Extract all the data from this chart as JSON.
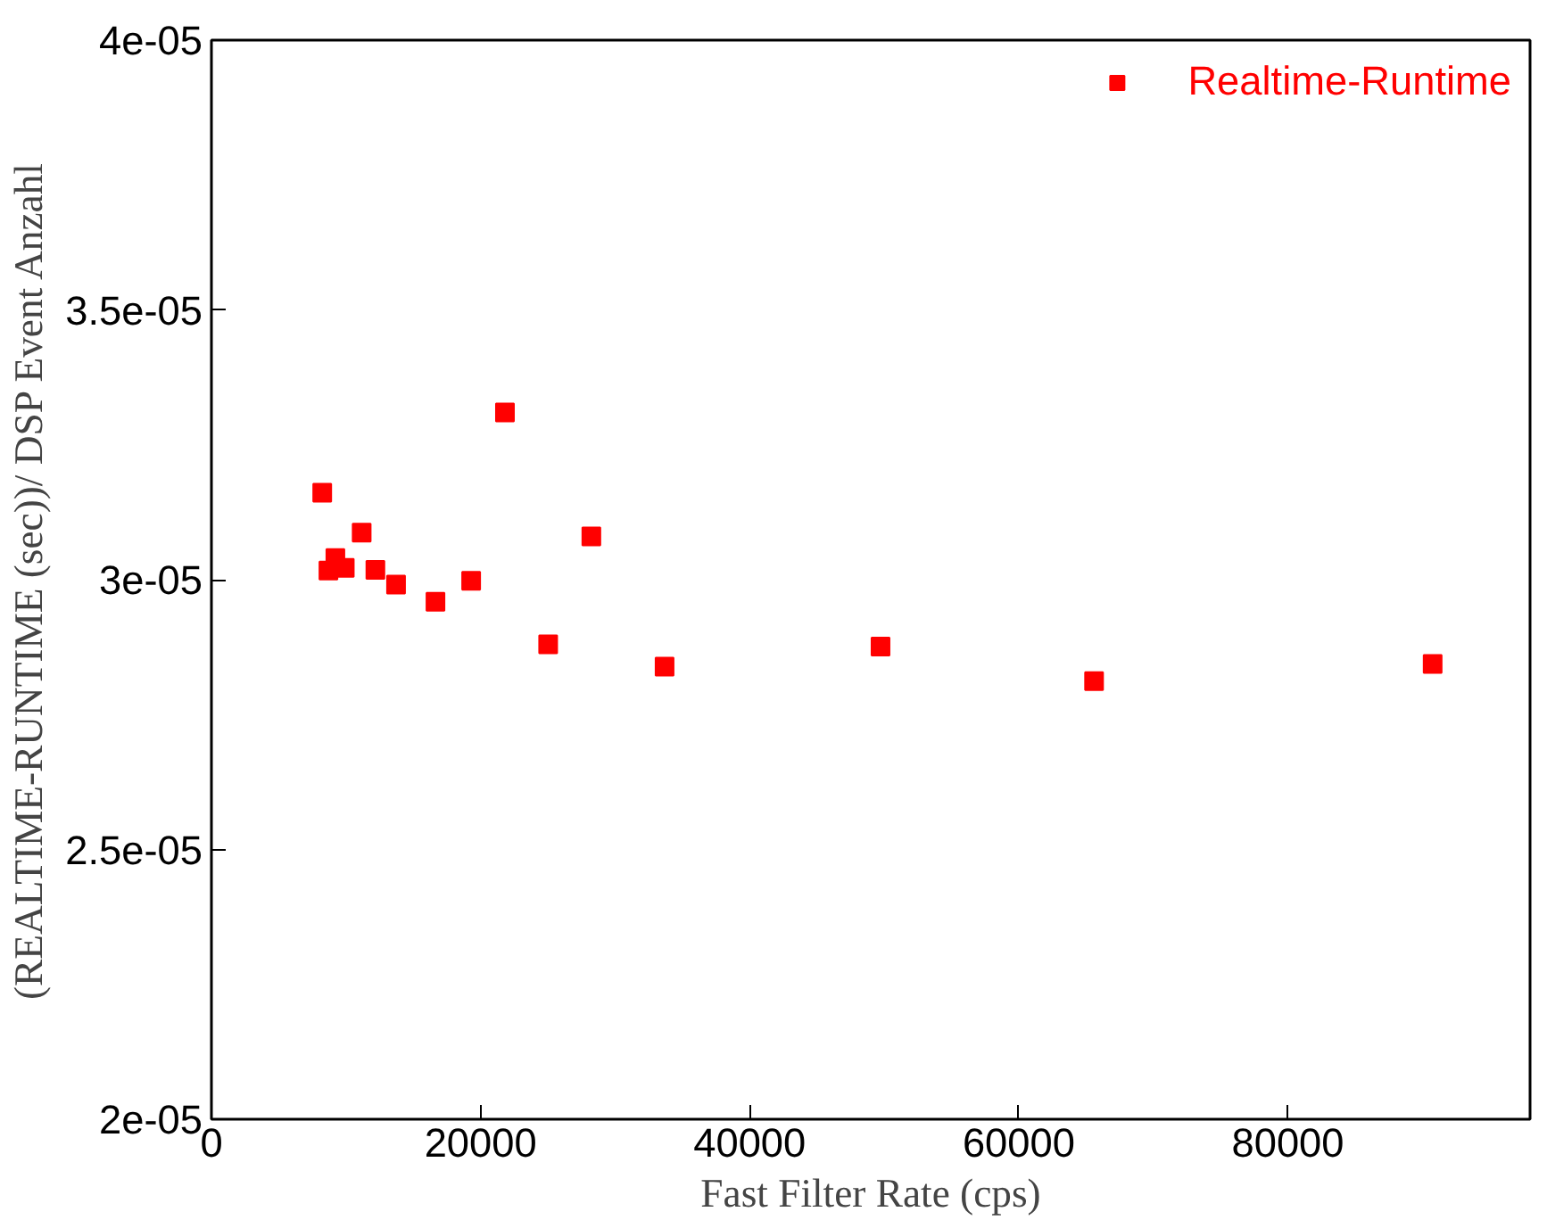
{
  "chart_data": {
    "type": "scatter",
    "xlabel": "Fast Filter Rate (cps)",
    "ylabel": "(REALTIME-RUNTIME (sec))/ DSP Event Anzahl",
    "x": [
      8234,
      8695,
      9211,
      9909,
      11166,
      12184,
      13720,
      16650,
      19302,
      21814,
      25025,
      28235,
      33678,
      49728,
      65597,
      90761
    ],
    "series": [
      {
        "name": "Realtime-Runtime",
        "color": "#ff0000",
        "values": [
          3.161e-05,
          3.017e-05,
          3.04e-05,
          3.022e-05,
          3.087e-05,
          3.018e-05,
          2.991e-05,
          2.959e-05,
          2.998e-05,
          3.31e-05,
          2.88e-05,
          3.08e-05,
          2.839e-05,
          2.876e-05,
          2.812e-05,
          2.844e-05
        ]
      }
    ],
    "xlim": [
      0,
      98000
    ],
    "ylim": [
      2e-05,
      4e-05
    ],
    "xticks": [
      0,
      20000,
      40000,
      60000,
      80000
    ],
    "yticks": [
      {
        "value": 2e-05,
        "label": "2e-05"
      },
      {
        "value": 2.5e-05,
        "label": "2.5e-05"
      },
      {
        "value": 3e-05,
        "label": "3e-05"
      },
      {
        "value": 3.5e-05,
        "label": "3.5e-05"
      },
      {
        "value": 4e-05,
        "label": "4e-05"
      }
    ],
    "marker": "square",
    "grid": false,
    "legend": "top right"
  }
}
